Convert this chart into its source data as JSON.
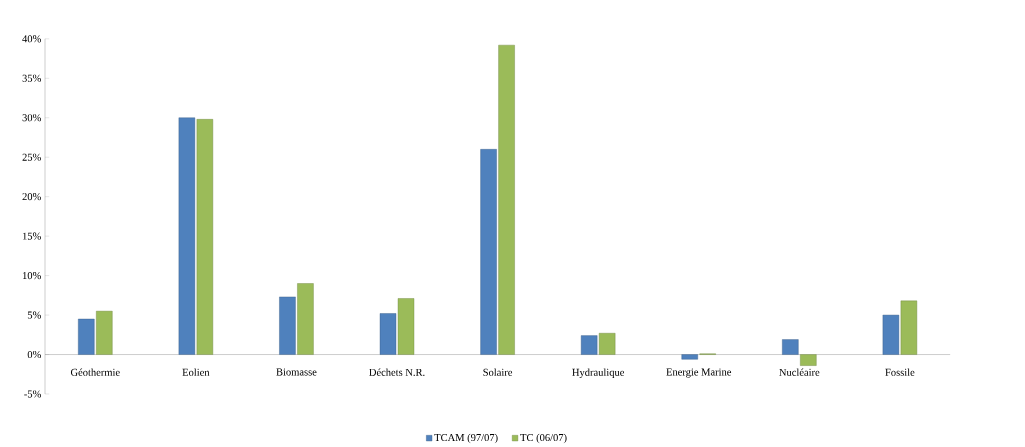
{
  "chart_data": {
    "type": "bar",
    "categories": [
      "Géothermie",
      "Eolien",
      "Biomasse",
      "Déchets N.R.",
      "Solaire",
      "Hydraulique",
      "Energie Marine",
      "Nucléaire",
      "Fossile"
    ],
    "series": [
      {
        "name": "TCAM (97/07)",
        "color": "#4f81bd",
        "values": [
          4.5,
          30.0,
          7.3,
          5.2,
          26.0,
          2.4,
          -0.6,
          1.9,
          5.0
        ]
      },
      {
        "name": "TC (06/07)",
        "color": "#9bbb59",
        "values": [
          5.5,
          29.8,
          9.0,
          7.1,
          39.2,
          2.7,
          0.1,
          -1.4,
          6.8
        ]
      }
    ],
    "ylim": [
      -5,
      40
    ],
    "yticks": [
      {
        "value": -5,
        "label": "-5%"
      },
      {
        "value": 0,
        "label": "0%"
      },
      {
        "value": 5,
        "label": "5%"
      },
      {
        "value": 10,
        "label": "10%"
      },
      {
        "value": 15,
        "label": "15%"
      },
      {
        "value": 20,
        "label": "20%"
      },
      {
        "value": 25,
        "label": "25%"
      },
      {
        "value": 30,
        "label": "30%"
      },
      {
        "value": 35,
        "label": "35%"
      },
      {
        "value": 40,
        "label": "40%"
      }
    ],
    "grid": false,
    "legend": "bottom"
  }
}
